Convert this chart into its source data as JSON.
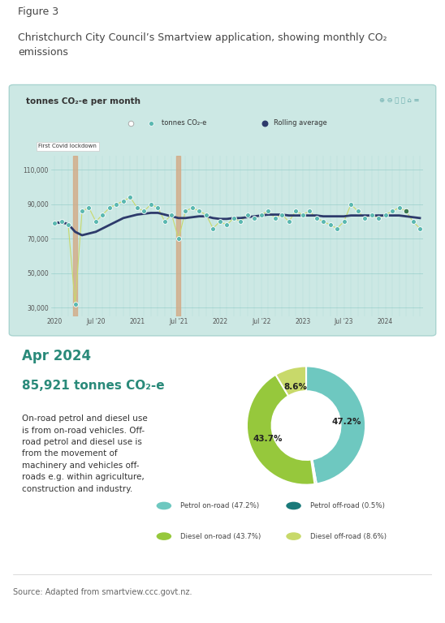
{
  "figure_label": "Figure 3",
  "figure_title": "Christchurch City Council’s Smartview application, showing monthly CO₂\nemissions",
  "chart_bg_color": "#cce8e4",
  "chart_title": "tonnes CO₂-e per month",
  "chart_border_color": "#aad4d0",
  "co2_values": [
    79000,
    80000,
    78000,
    32000,
    86000,
    88000,
    80000,
    84000,
    88000,
    90000,
    92000,
    94000,
    88000,
    86000,
    90000,
    88000,
    80000,
    84000,
    70000,
    86000,
    88000,
    86000,
    84000,
    76000,
    80000,
    78000,
    82000,
    80000,
    84000,
    82000,
    84000,
    86000,
    82000,
    84000,
    80000,
    86000,
    84000,
    86000,
    82000,
    80000,
    78000,
    76000,
    80000,
    90000,
    86000,
    82000,
    84000,
    82000,
    84000,
    86000,
    88000,
    86000,
    80000,
    76000
  ],
  "rolling_avg": [
    79000,
    79500,
    78500,
    74000,
    72000,
    73000,
    74000,
    76000,
    78000,
    80000,
    82000,
    83000,
    84000,
    84500,
    85000,
    85000,
    84000,
    83000,
    82000,
    82000,
    82500,
    83000,
    83000,
    82000,
    81500,
    81500,
    82000,
    82000,
    82500,
    83000,
    83500,
    84000,
    84000,
    84000,
    83500,
    83500,
    83500,
    83500,
    83500,
    83000,
    83000,
    83000,
    83000,
    83500,
    83500,
    83500,
    83500,
    83500,
    83500,
    83500,
    83500,
    83000,
    82500,
    82000
  ],
  "dot_color": "#5ab8b0",
  "line_color": "#c8d96a",
  "rolling_color": "#2d3a6b",
  "lockdown1_x": 3,
  "lockdown2_x": 18,
  "lockdown_color": "#d4a882",
  "yticks": [
    30000,
    50000,
    70000,
    90000,
    110000
  ],
  "ytick_labels": [
    "30,000",
    "50,000",
    "70,000",
    "90,000",
    "110,000"
  ],
  "xtick_positions": [
    0,
    6,
    12,
    18,
    24,
    30,
    36,
    42,
    48
  ],
  "xtick_labels": [
    "2020",
    "Jul '20",
    "2021",
    "Jul '21",
    "2022",
    "Jul '22",
    "2023",
    "Jul '23",
    "2024"
  ],
  "pie_date": "Apr 2024",
  "pie_total": "85,921 tonnes CO₂-e",
  "pie_values": [
    47.2,
    0.5,
    43.7,
    8.6
  ],
  "pie_colors": [
    "#6ec8c0",
    "#1a7a7a",
    "#96c83c",
    "#c8d96a"
  ],
  "pie_legend_labels": [
    "Petrol on-road (47.2%)",
    "Petrol off-road (0.5%)",
    "Diesel on-road (43.7%)",
    "Diesel off-road (8.6%)"
  ],
  "pie_legend_colors": [
    "#6ec8c0",
    "#1a7a7a",
    "#96c83c",
    "#c8d96a"
  ],
  "pie_pct_labels": [
    "47.2%",
    "",
    "43.7%",
    "8.6%"
  ],
  "description_text": "On-road petrol and diesel use\nis from on-road vehicles. Off-\nroad petrol and diesel use is\nfrom the movement of\nmachinery and vehicles off-\nroads e.g. within agriculture,\nconstruction and industry.",
  "source_text": "Source: Adapted from smartview.ccc.govt.nz.",
  "date_color": "#2a8a7a",
  "total_color": "#2a8a7a"
}
